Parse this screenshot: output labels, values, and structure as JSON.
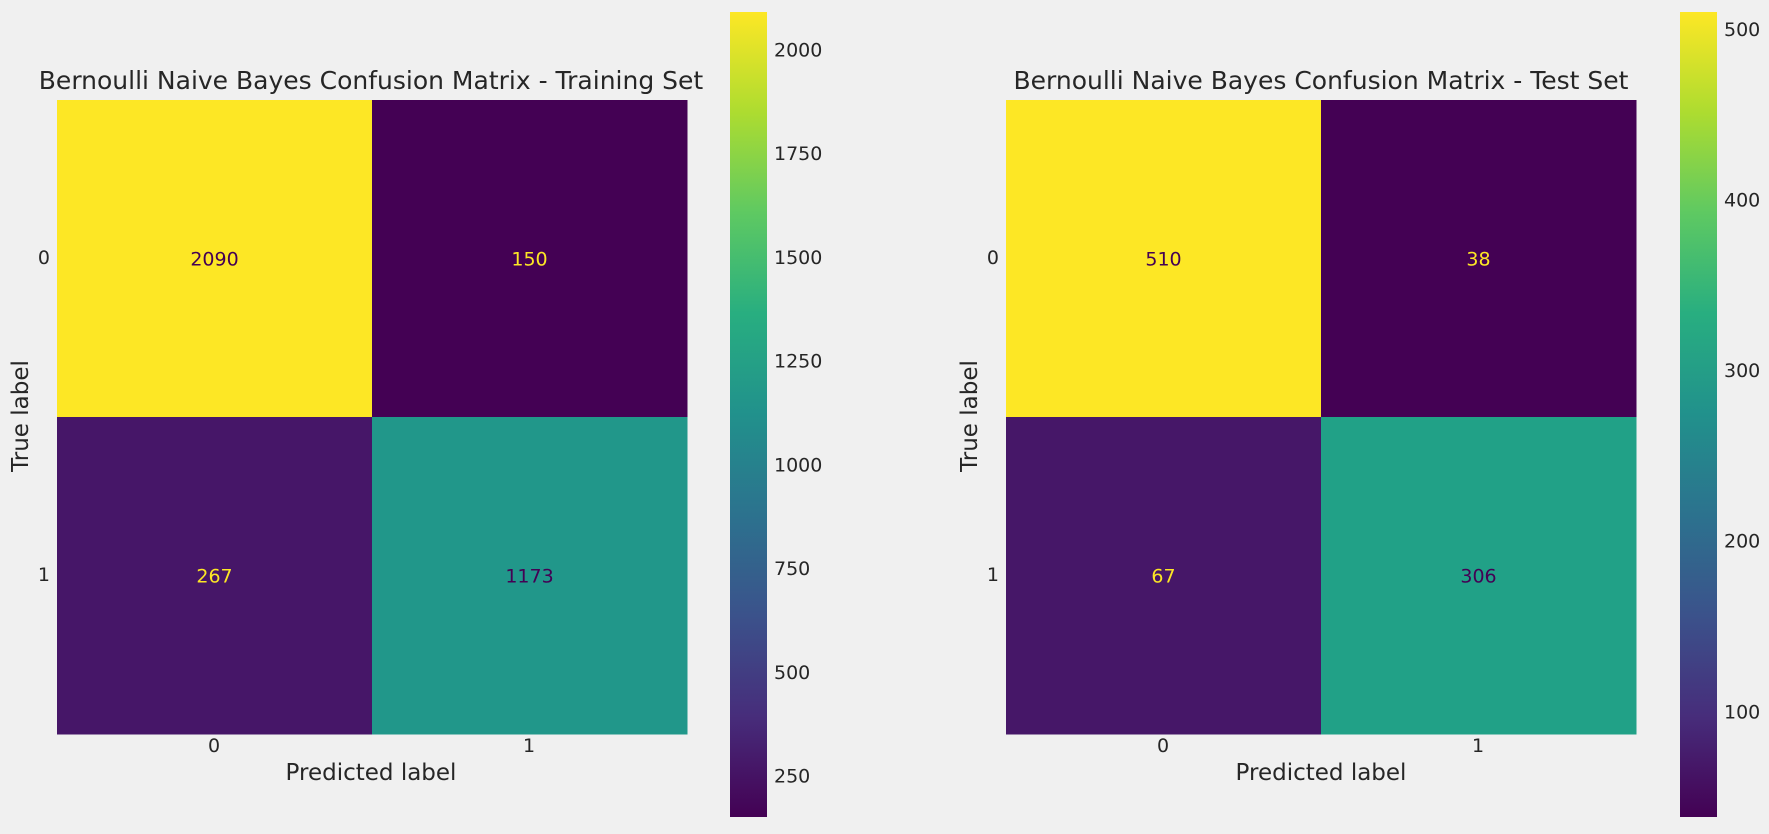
{
  "chart_data": [
    {
      "type": "heatmap",
      "title": "Bernoulli Naive Bayes Confusion Matrix - Training Set",
      "xlabel": "Predicted label",
      "ylabel": "True label",
      "x_categories": [
        "0",
        "1"
      ],
      "y_categories": [
        "0",
        "1"
      ],
      "matrix": [
        [
          2090,
          150
        ],
        [
          267,
          1173
        ]
      ],
      "colormap": "viridis",
      "colorbar": {
        "min": 150,
        "max": 2090,
        "ticks": [
          250,
          500,
          750,
          1000,
          1250,
          1500,
          1750,
          2000
        ]
      }
    },
    {
      "type": "heatmap",
      "title": "Bernoulli Naive Bayes Confusion Matrix - Test Set",
      "xlabel": "Predicted label",
      "ylabel": "True label",
      "x_categories": [
        "0",
        "1"
      ],
      "y_categories": [
        "0",
        "1"
      ],
      "matrix": [
        [
          510,
          38
        ],
        [
          67,
          306
        ]
      ],
      "colormap": "viridis",
      "colorbar": {
        "min": 38,
        "max": 510,
        "ticks": [
          100,
          200,
          300,
          400,
          500
        ]
      }
    }
  ]
}
